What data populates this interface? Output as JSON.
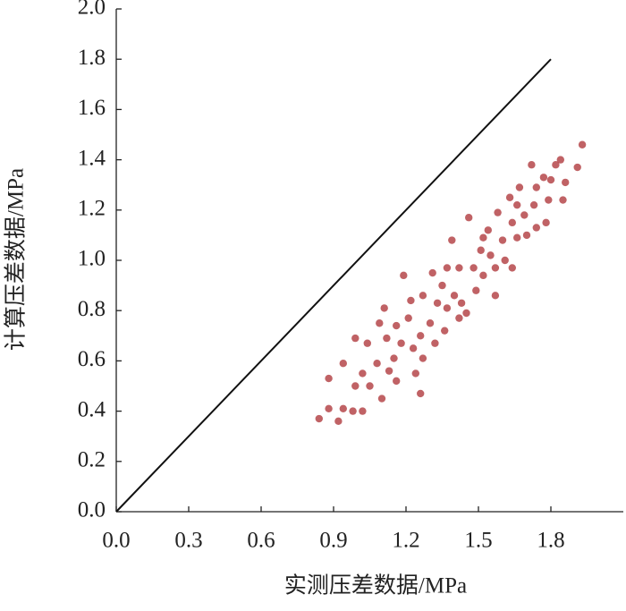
{
  "chart_data": {
    "type": "scatter",
    "x_label": "实测压差数据/MPa",
    "y_label": "计算压差数据/MPa",
    "color": "#b5474a",
    "xlim": [
      0,
      2.1
    ],
    "ylim": [
      0,
      2.0
    ],
    "xticks": [
      {
        "value": 0,
        "label": "0.0"
      },
      0.3,
      0.6,
      0.9,
      1.2,
      1.5,
      1.8
    ],
    "yticks": [
      {
        "value": 0,
        "label": "0.0"
      },
      0.2,
      0.4,
      0.6,
      0.8,
      {
        "value": 1,
        "label": "1.0"
      },
      1.2,
      1.4,
      1.6,
      1.8,
      {
        "value": 2,
        "label": "2.0"
      }
    ],
    "reference_line": {
      "x": [
        0,
        1.8
      ],
      "y": [
        0,
        1.8
      ],
      "color": "#111111"
    },
    "x": [
      0.84,
      0.88,
      0.92,
      0.94,
      0.98,
      1.02,
      0.88,
      0.94,
      0.99,
      0.99,
      1.04,
      1.02,
      1.05,
      1.08,
      1.1,
      1.12,
      1.13,
      1.15,
      1.16,
      1.18,
      1.19,
      1.21,
      1.23,
      1.24,
      1.26,
      1.27,
      1.27,
      1.3,
      1.32,
      1.33,
      1.35,
      1.36,
      1.37,
      1.39,
      1.4,
      1.42,
      1.43,
      1.45,
      1.46,
      1.48,
      1.49,
      1.51,
      1.52,
      1.54,
      1.55,
      1.57,
      1.58,
      1.6,
      1.61,
      1.63,
      1.64,
      1.66,
      1.67,
      1.69,
      1.7,
      1.72,
      1.73,
      1.74,
      1.77,
      1.78,
      1.8,
      1.82,
      1.84,
      1.86,
      1.85,
      1.91,
      1.93,
      1.64,
      1.11,
      1.16,
      1.22,
      1.09,
      1.37,
      1.42,
      1.52,
      1.57,
      1.66,
      1.74,
      1.79,
      1.26,
      1.31
    ],
    "y": [
      0.37,
      0.41,
      0.36,
      0.41,
      0.4,
      0.4,
      0.53,
      0.59,
      0.5,
      0.69,
      0.67,
      0.55,
      0.5,
      0.59,
      0.45,
      0.69,
      0.56,
      0.61,
      0.52,
      0.67,
      0.94,
      0.77,
      0.65,
      0.55,
      0.7,
      0.61,
      0.86,
      0.75,
      0.67,
      0.83,
      0.9,
      0.72,
      0.81,
      1.08,
      0.86,
      0.97,
      0.83,
      0.79,
      1.17,
      0.97,
      0.88,
      1.04,
      0.94,
      1.12,
      1.02,
      0.97,
      1.19,
      1.08,
      1.0,
      1.25,
      1.15,
      1.09,
      1.29,
      1.18,
      1.1,
      1.38,
      1.22,
      1.29,
      1.33,
      1.15,
      1.32,
      1.38,
      1.4,
      1.31,
      1.24,
      1.37,
      1.46,
      0.97,
      0.81,
      0.74,
      0.84,
      0.75,
      0.97,
      0.77,
      1.09,
      0.86,
      1.22,
      1.13,
      1.24,
      0.47,
      0.95
    ]
  }
}
